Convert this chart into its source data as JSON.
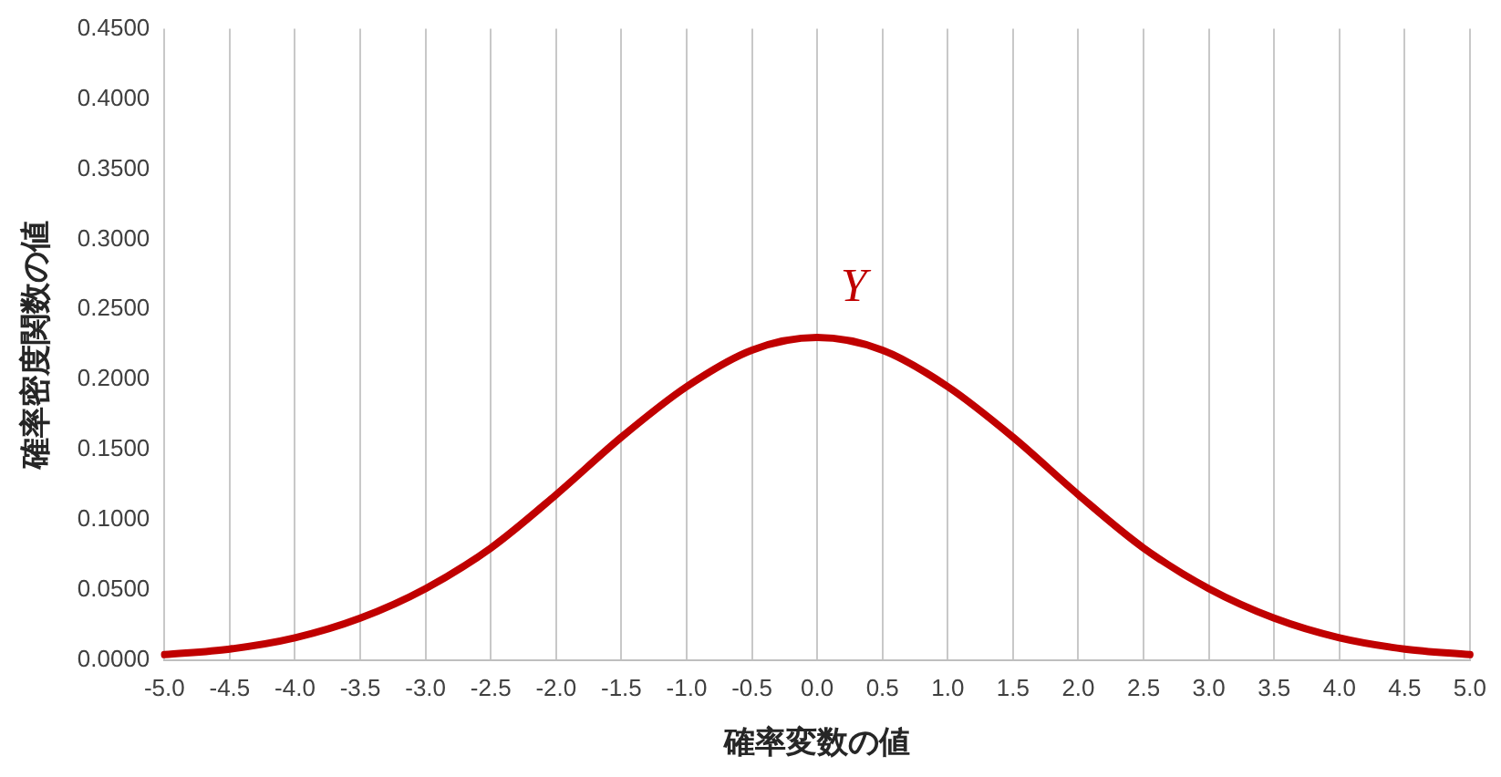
{
  "chart_data": {
    "type": "line",
    "xlabel": "確率変数の値",
    "ylabel": "確率密度関数の値",
    "categories": [
      "-5.0",
      "-4.5",
      "-4.0",
      "-3.5",
      "-3.0",
      "-2.5",
      "-2.0",
      "-1.5",
      "-1.0",
      "-0.5",
      "0.0",
      "0.5",
      "1.0",
      "1.5",
      "2.0",
      "2.5",
      "3.0",
      "3.5",
      "4.0",
      "4.5",
      "5.0"
    ],
    "series": [
      {
        "name": "Y",
        "color": "#c00000",
        "values": [
          0.004,
          0.008,
          0.016,
          0.03,
          0.051,
          0.08,
          0.118,
          0.159,
          0.195,
          0.221,
          0.23,
          0.221,
          0.195,
          0.159,
          0.118,
          0.08,
          0.051,
          0.03,
          0.016,
          0.008,
          0.004
        ]
      }
    ],
    "ylim": [
      0,
      0.45
    ],
    "yticks": [
      {
        "value": 0,
        "label": "0.0000"
      },
      {
        "value": 0.05,
        "label": "0.0500"
      },
      {
        "value": 0.1,
        "label": "0.1000"
      },
      {
        "value": 0.15,
        "label": "0.1500"
      },
      {
        "value": 0.2,
        "label": "0.2000"
      },
      {
        "value": 0.25,
        "label": "0.2500"
      },
      {
        "value": 0.3,
        "label": "0.3000"
      },
      {
        "value": 0.35,
        "label": "0.3500"
      },
      {
        "value": 0.4,
        "label": "0.4000"
      },
      {
        "value": 0.45,
        "label": "0.4500"
      }
    ],
    "grid": "x",
    "legend": false,
    "marker": "none",
    "line_style": "solid"
  }
}
